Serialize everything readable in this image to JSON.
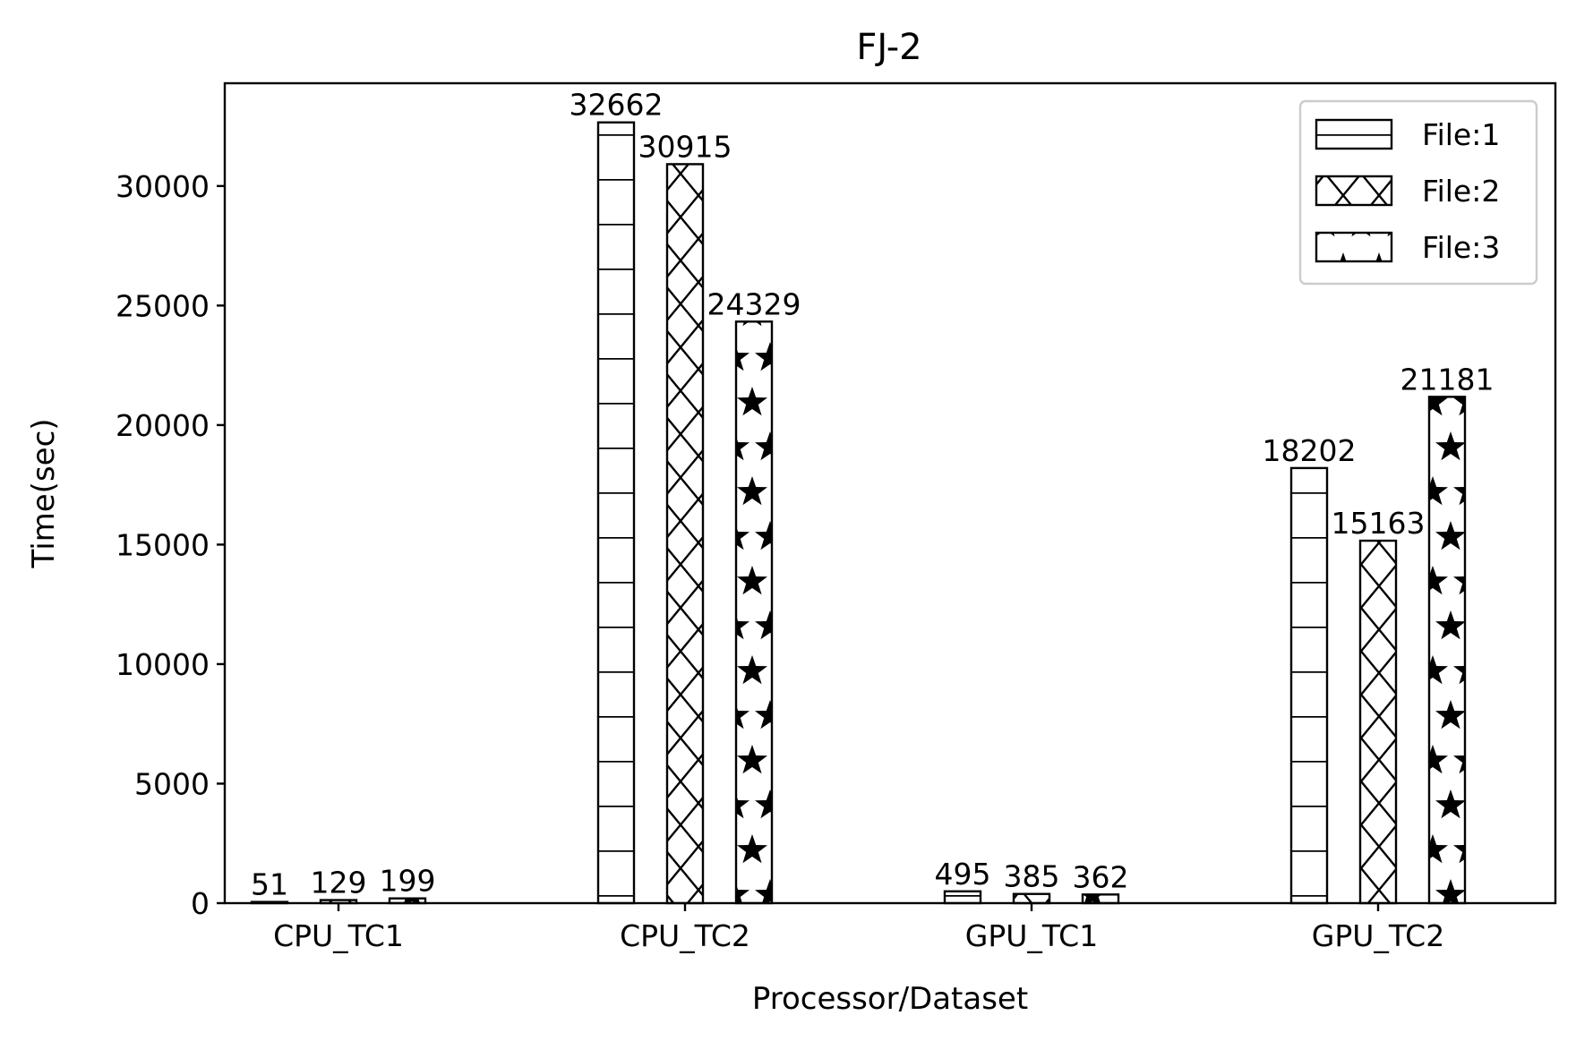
{
  "chart_data": {
    "type": "bar",
    "title": "FJ-2",
    "xlabel": "Processor/Dataset",
    "ylabel": "Time(sec)",
    "categories": [
      "CPU_TC1",
      "CPU_TC2",
      "GPU_TC1",
      "GPU_TC2"
    ],
    "series": [
      {
        "name": "File:1",
        "hatch": "horizontal-lines",
        "values": [
          51,
          32662,
          495,
          18202
        ]
      },
      {
        "name": "File:2",
        "hatch": "cross-diagonal",
        "values": [
          129,
          30915,
          385,
          15163
        ]
      },
      {
        "name": "File:3",
        "hatch": "stars",
        "values": [
          199,
          24329,
          362,
          21181
        ]
      }
    ],
    "ylim": [
      0,
      34300
    ],
    "yticks": [
      0,
      5000,
      10000,
      15000,
      20000,
      25000,
      30000
    ],
    "legend_position": "top-right",
    "grid": false,
    "colors": {
      "bar_fill": "#ffffff",
      "bar_edge": "#000000"
    }
  }
}
